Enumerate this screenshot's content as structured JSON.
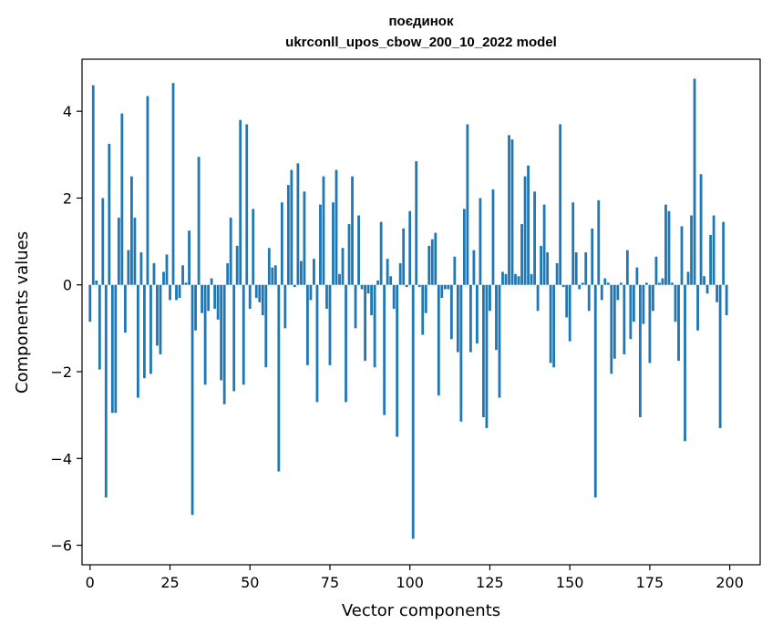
{
  "chart_data": {
    "type": "bar",
    "title": "поєдинок",
    "subtitle": "ukrconll_upos_cbow_200_10_2022 model",
    "xlabel": "Vector components",
    "ylabel": "Components values",
    "xlim": [
      -2.5,
      209.5
    ],
    "ylim": [
      -6.45,
      5.2
    ],
    "xticks": [
      0,
      25,
      50,
      75,
      100,
      125,
      150,
      175,
      200
    ],
    "yticks": [
      -6,
      -4,
      -2,
      0,
      2,
      4
    ],
    "ytick_labels": [
      "−6",
      "−4",
      "−2",
      "0",
      "2",
      "4"
    ],
    "bar_color": "#1f77b4",
    "grid": false,
    "x": [
      0,
      1,
      2,
      3,
      4,
      5,
      6,
      7,
      8,
      9,
      10,
      11,
      12,
      13,
      14,
      15,
      16,
      17,
      18,
      19,
      20,
      21,
      22,
      23,
      24,
      25,
      26,
      27,
      28,
      29,
      30,
      31,
      32,
      33,
      34,
      35,
      36,
      37,
      38,
      39,
      40,
      41,
      42,
      43,
      44,
      45,
      46,
      47,
      48,
      49,
      50,
      51,
      52,
      53,
      54,
      55,
      56,
      57,
      58,
      59,
      60,
      61,
      62,
      63,
      64,
      65,
      66,
      67,
      68,
      69,
      70,
      71,
      72,
      73,
      74,
      75,
      76,
      77,
      78,
      79,
      80,
      81,
      82,
      83,
      84,
      85,
      86,
      87,
      88,
      89,
      90,
      91,
      92,
      93,
      94,
      95,
      96,
      97,
      98,
      99,
      100,
      101,
      102,
      103,
      104,
      105,
      106,
      107,
      108,
      109,
      110,
      111,
      112,
      113,
      114,
      115,
      116,
      117,
      118,
      119,
      120,
      121,
      122,
      123,
      124,
      125,
      126,
      127,
      128,
      129,
      130,
      131,
      132,
      133,
      134,
      135,
      136,
      137,
      138,
      139,
      140,
      141,
      142,
      143,
      144,
      145,
      146,
      147,
      148,
      149,
      150,
      151,
      152,
      153,
      154,
      155,
      156,
      157,
      158,
      159,
      160,
      161,
      162,
      163,
      164,
      165,
      166,
      167,
      168,
      169,
      170,
      171,
      172,
      173,
      174,
      175,
      176,
      177,
      178,
      179,
      180,
      181,
      182,
      183,
      184,
      185,
      186,
      187,
      188,
      189,
      190,
      191,
      192,
      193,
      194,
      195,
      196,
      197,
      198,
      199
    ],
    "values": [
      -0.85,
      4.6,
      0.1,
      -1.95,
      2.0,
      -4.9,
      3.25,
      -2.95,
      -2.95,
      1.55,
      3.95,
      -1.1,
      0.8,
      2.5,
      1.55,
      -2.6,
      0.75,
      -2.15,
      4.35,
      -2.05,
      0.5,
      -1.4,
      -1.6,
      0.3,
      0.7,
      -0.35,
      4.65,
      -0.35,
      -0.3,
      0.45,
      0.05,
      1.25,
      -5.3,
      -1.05,
      2.95,
      -0.65,
      -2.3,
      -0.6,
      0.15,
      -0.55,
      -0.8,
      -2.2,
      -2.75,
      0.5,
      1.55,
      -2.45,
      0.9,
      3.8,
      -2.3,
      3.7,
      -0.55,
      1.75,
      -0.3,
      -0.4,
      -0.7,
      -1.9,
      0.85,
      0.4,
      0.45,
      -4.3,
      1.9,
      -1.0,
      2.3,
      2.65,
      -0.05,
      2.8,
      0.55,
      2.15,
      -1.85,
      -0.35,
      0.6,
      -2.7,
      1.85,
      2.5,
      -0.55,
      -1.85,
      1.9,
      2.65,
      0.25,
      0.85,
      -2.7,
      1.4,
      2.5,
      -1.0,
      1.6,
      -0.1,
      -1.75,
      -0.2,
      -0.7,
      -1.9,
      0.1,
      1.45,
      -3.0,
      0.6,
      0.2,
      -0.55,
      -3.5,
      0.5,
      1.3,
      -0.05,
      1.7,
      -5.85,
      2.85,
      -0.05,
      -1.15,
      -0.65,
      0.9,
      1.05,
      1.2,
      -2.55,
      -0.3,
      -0.1,
      -0.1,
      -1.25,
      0.65,
      -1.55,
      -3.15,
      1.75,
      3.7,
      -1.55,
      0.8,
      -1.35,
      2.0,
      -3.05,
      -3.3,
      -0.6,
      2.2,
      -1.5,
      -2.6,
      0.3,
      0.25,
      3.45,
      3.35,
      0.25,
      0.2,
      1.4,
      2.5,
      2.75,
      0.25,
      2.15,
      -0.6,
      0.9,
      1.85,
      0.75,
      -1.8,
      -1.9,
      0.5,
      3.7,
      -0.05,
      -0.75,
      -1.3,
      1.9,
      0.75,
      -0.1,
      0.05,
      0.75,
      -0.6,
      1.3,
      -4.9,
      1.95,
      -0.35,
      0.15,
      0.05,
      -2.05,
      -1.7,
      -0.35,
      0.05,
      -1.6,
      0.8,
      -1.25,
      -0.85,
      0.4,
      -3.05,
      -0.9,
      0.05,
      -1.8,
      -0.6,
      0.65,
      0.05,
      0.15,
      1.85,
      1.7,
      0.05,
      -0.85,
      -1.75,
      1.35,
      -3.6,
      0.3,
      1.6,
      4.75,
      -1.05,
      2.55,
      0.2,
      -0.2,
      1.15,
      1.6,
      -0.4,
      -3.3,
      1.45,
      -0.7
    ]
  }
}
